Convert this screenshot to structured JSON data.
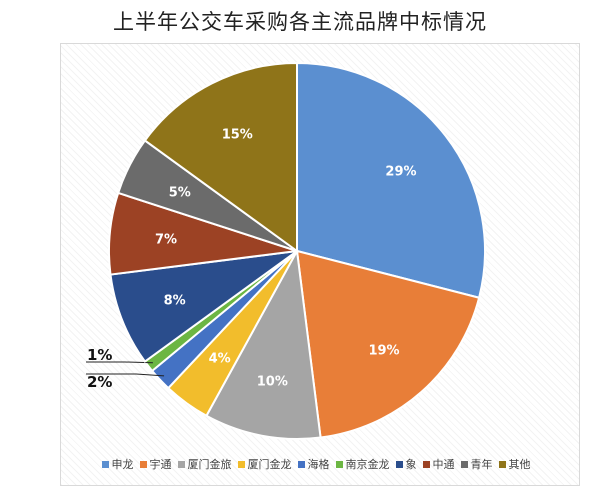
{
  "chart_data": {
    "type": "pie",
    "title": "上半年公交车采购各主流品牌中标情况",
    "categories": [
      "申龙",
      "宇通",
      "厦门金旅",
      "厦门金龙",
      "海格",
      "南京金龙",
      "象",
      "中通",
      "青年",
      "其他"
    ],
    "values": [
      29,
      19,
      10,
      4,
      2,
      1,
      8,
      7,
      5,
      15
    ],
    "data_labels": [
      "29%",
      "19%",
      "10%",
      "4%",
      "2%",
      "1%",
      "8%",
      "7%",
      "5%",
      "15%"
    ],
    "colors": [
      "#5b8fd0",
      "#e87e38",
      "#a5a5a5",
      "#f2bd2c",
      "#4472c4",
      "#6cb643",
      "#2a4d8c",
      "#9c4224",
      "#6b6b6b",
      "#8f7419"
    ],
    "legend_position": "bottom"
  }
}
